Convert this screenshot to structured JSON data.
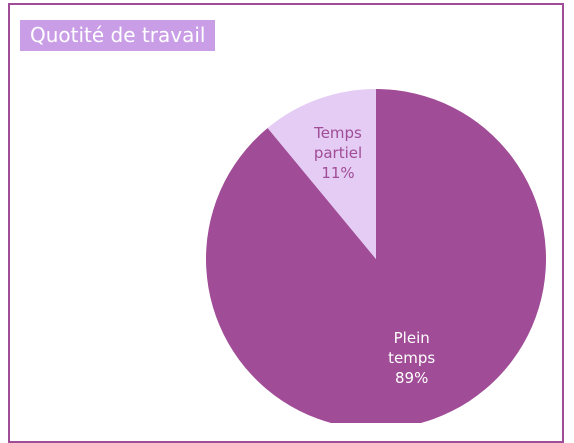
{
  "chart_data": {
    "type": "pie",
    "title": "Quotité de travail",
    "categories": [
      "Plein temps",
      "Temps partiel"
    ],
    "values": [
      89,
      11
    ],
    "value_labels": [
      "89%",
      "11%"
    ],
    "colors": [
      "#a04c96",
      "#e4ccf4"
    ]
  }
}
